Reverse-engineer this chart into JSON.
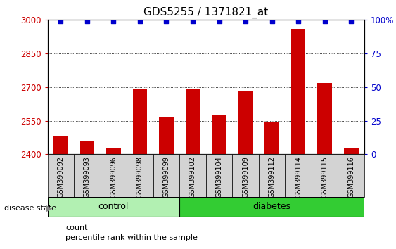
{
  "title": "GDS5255 / 1371821_at",
  "categories": [
    "GSM399092",
    "GSM399093",
    "GSM399096",
    "GSM399098",
    "GSM399099",
    "GSM399102",
    "GSM399104",
    "GSM399109",
    "GSM399112",
    "GSM399114",
    "GSM399115",
    "GSM399116"
  ],
  "counts": [
    2480,
    2458,
    2430,
    2690,
    2565,
    2690,
    2575,
    2685,
    2545,
    2960,
    2720,
    2430
  ],
  "percentile_ranks": [
    99,
    99,
    99,
    99,
    99,
    99,
    99,
    99,
    99,
    99,
    99,
    99
  ],
  "ylim_left": [
    2400,
    3000
  ],
  "ylim_right": [
    0,
    100
  ],
  "yticks_left": [
    2400,
    2550,
    2700,
    2850,
    3000
  ],
  "yticks_right": [
    0,
    25,
    50,
    75,
    100
  ],
  "bar_color": "#cc0000",
  "dot_color": "#0000cc",
  "bar_width": 0.55,
  "n_control": 5,
  "n_diabetes": 7,
  "control_color": "#b2f0b2",
  "diabetes_color": "#33cc33",
  "xtick_bg_color": "#d3d3d3",
  "plot_bg_color": "#ffffff",
  "title_fontsize": 11,
  "axis_color_left": "#cc0000",
  "axis_color_right": "#0000cc",
  "grid_color": "#000000",
  "legend_count_color": "#cc0000",
  "legend_pct_color": "#0000cc"
}
